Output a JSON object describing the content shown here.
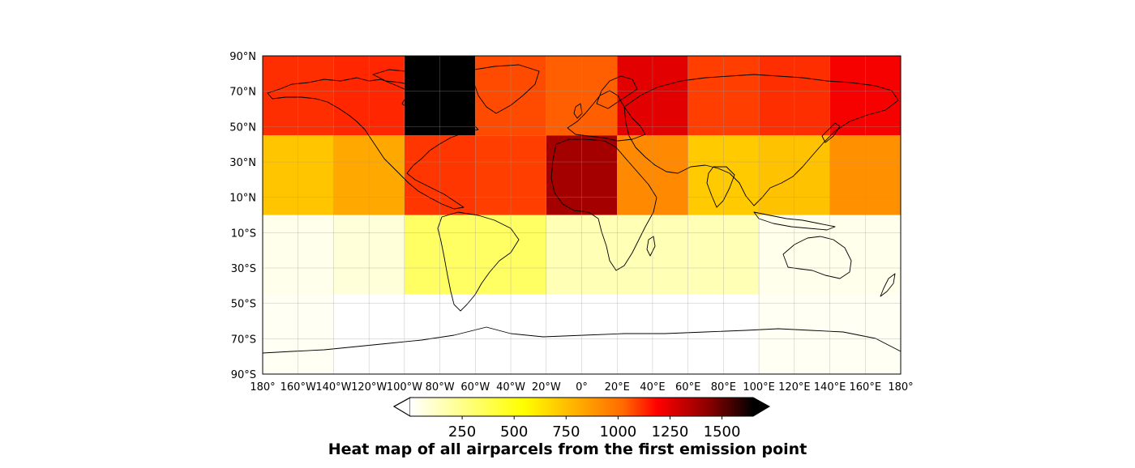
{
  "title": "Heat map of all airparcels from the first emission point",
  "map": {
    "projection": "PlateCarree",
    "lon_range": [
      -180,
      180
    ],
    "lat_range": [
      -90,
      90
    ],
    "gridlines": true,
    "coastlines": true,
    "borders": true,
    "lon_ticks": [
      "180°",
      "160°W",
      "140°W",
      "120°W",
      "100°W",
      "80°W",
      "60°W",
      "40°W",
      "20°W",
      "0°",
      "20°E",
      "40°E",
      "60°E",
      "80°E",
      "100°E",
      "120°E",
      "140°E",
      "160°E",
      "180°"
    ],
    "lat_ticks": [
      "90°N",
      "70°N",
      "50°N",
      "30°N",
      "10°N",
      "10°S",
      "30°S",
      "50°S",
      "70°S",
      "90°S"
    ]
  },
  "colorbar": {
    "colormap": "hot_r",
    "vmin": 0,
    "vmax": 1650,
    "extend": "both",
    "orientation": "horizontal",
    "ticks": [
      "250",
      "500",
      "750",
      "1000",
      "1250",
      "1500"
    ]
  },
  "chart_data": {
    "type": "heatmap",
    "title": "Heat map of all airparcels from the first emission point",
    "lon_edges": [
      -180,
      -140,
      -100,
      -60,
      -20,
      20,
      60,
      100,
      140,
      180
    ],
    "lat_bands": [
      "90°N–45°N",
      "45°N–0°",
      "0°–45°S",
      "45°S–90°S"
    ],
    "lat_edges": [
      90,
      45,
      0,
      -45,
      -90
    ],
    "values": [
      [
        920,
        940,
        1650,
        850,
        800,
        1100,
        880,
        920,
        1050
      ],
      [
        550,
        620,
        900,
        880,
        1250,
        700,
        540,
        560,
        680
      ],
      [
        30,
        60,
        250,
        250,
        120,
        120,
        120,
        30,
        30
      ],
      [
        20,
        0,
        0,
        0,
        0,
        0,
        0,
        20,
        20
      ]
    ],
    "colorbar_ticks": [
      250,
      500,
      750,
      1000,
      1250,
      1500
    ],
    "xlabel": "",
    "ylabel": ""
  }
}
